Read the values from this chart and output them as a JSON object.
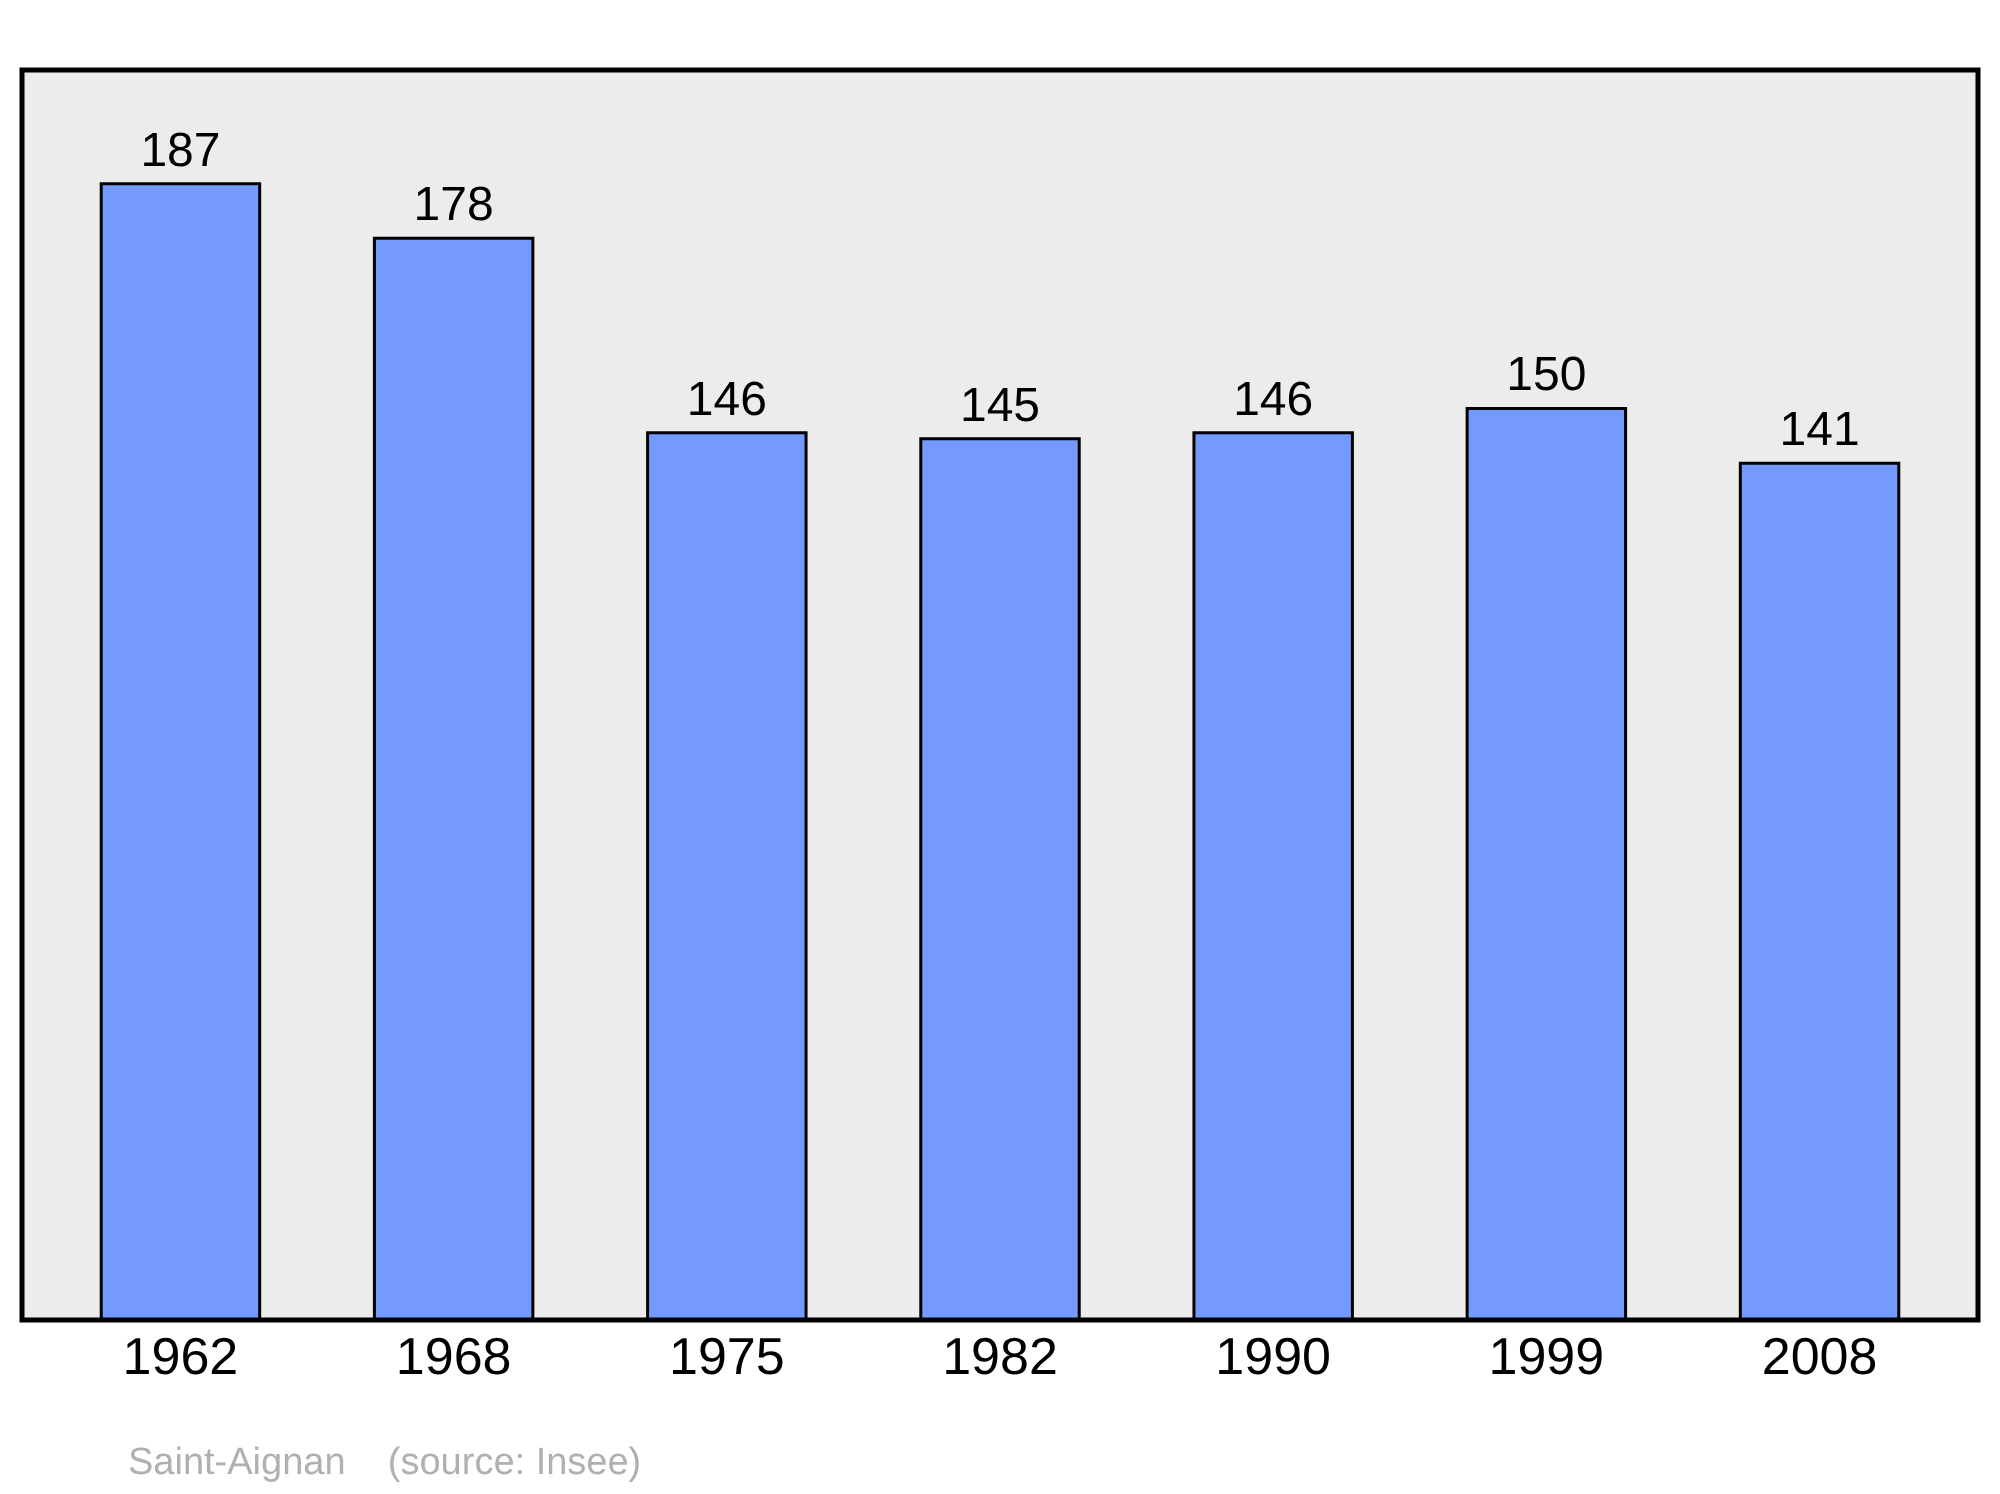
{
  "chart_data": {
    "type": "bar",
    "categories": [
      "1962",
      "1968",
      "1975",
      "1982",
      "1990",
      "1999",
      "2008"
    ],
    "values": [
      187,
      178,
      146,
      145,
      146,
      150,
      141
    ],
    "color": "#7499ff",
    "data_labels": true,
    "grid": false,
    "legend": false,
    "annotations": [
      "Saint-Aignan    (source: Insee)"
    ]
  }
}
